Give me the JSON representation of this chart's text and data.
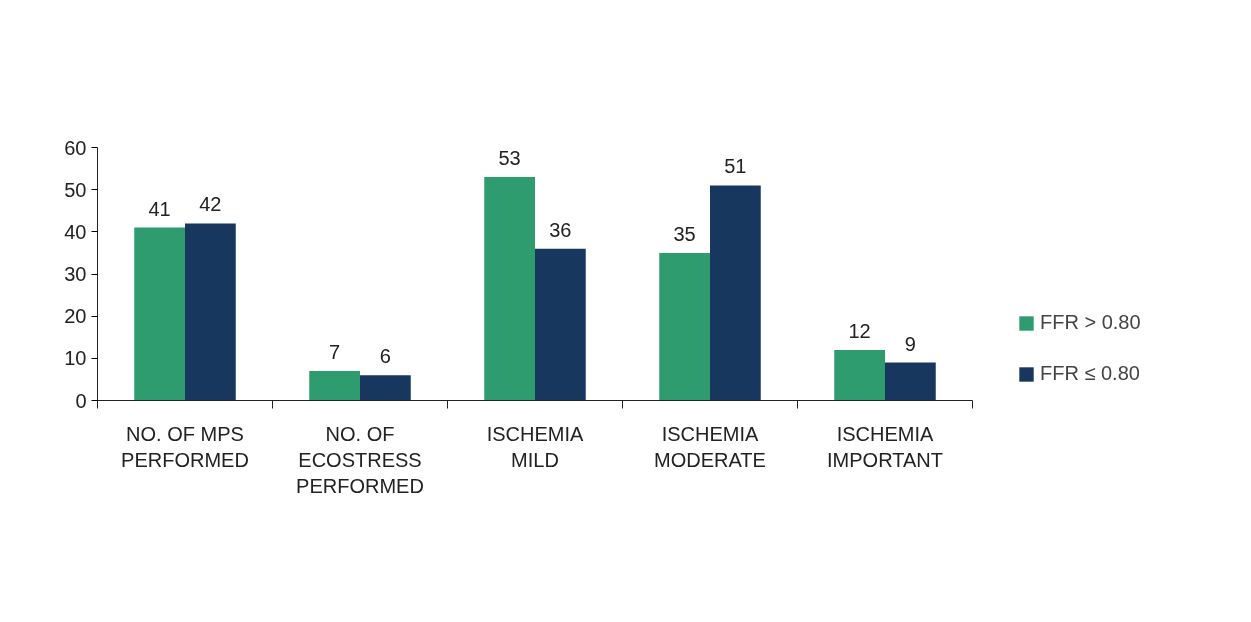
{
  "chart_data": {
    "type": "bar",
    "categories": [
      "NO. OF MPS\nPERFORMED",
      "NO. OF\nECOSTRESS\nPERFORMED",
      "ISCHEMIA\nMILD",
      "ISCHEMIA\nMODERATE",
      "ISCHEMIA\nIMPORTANT"
    ],
    "series": [
      {
        "name": "FFR > 0.80",
        "color": "#2e9c6e",
        "values": [
          41,
          7,
          53,
          35,
          12
        ]
      },
      {
        "name": "FFR ≤ 0.80",
        "color": "#17375e",
        "values": [
          42,
          6,
          36,
          51,
          9
        ]
      }
    ],
    "ylim": [
      0,
      60
    ],
    "yticks": [
      0,
      10,
      20,
      30,
      40,
      50,
      60
    ],
    "data_labels": true,
    "grid": false,
    "legend": "right"
  }
}
